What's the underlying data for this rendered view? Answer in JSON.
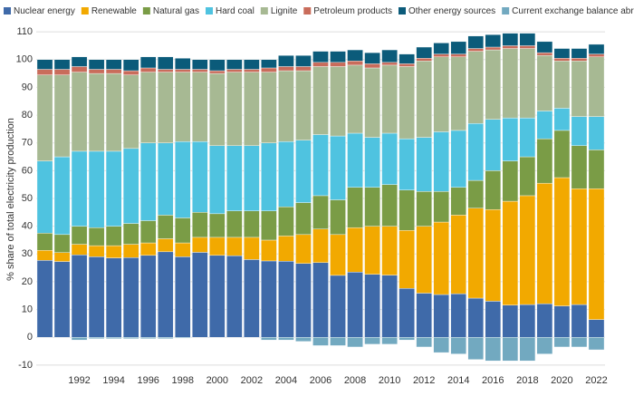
{
  "chart_data": {
    "type": "stacked_bar",
    "y_label": "% share of total electricity production",
    "categories": [
      null,
      null,
      "1992",
      null,
      "1994",
      null,
      "1996",
      null,
      "1998",
      null,
      "2000",
      null,
      "2002",
      null,
      "2004",
      null,
      "2006",
      null,
      "2008",
      null,
      "2010",
      null,
      "2012",
      null,
      "2014",
      null,
      "2016",
      null,
      "2018",
      null,
      "2020",
      null,
      "2022"
    ],
    "series": [
      {
        "name": "Nuclear energy",
        "color": "#3f6aa9",
        "values": [
          27.7,
          27.3,
          29.7,
          29.0,
          28.6,
          28.7,
          29.5,
          30.8,
          29.0,
          30.6,
          29.5,
          29.4,
          28.0,
          27.5,
          27.4,
          26.6,
          26.9,
          22.3,
          23.5,
          22.7,
          22.4,
          17.6,
          15.9,
          15.4,
          15.7,
          14.1,
          13.0,
          11.6,
          11.8,
          12.1,
          11.3,
          11.8,
          6.4
        ]
      },
      {
        "name": "Renewable",
        "color": "#f2a900",
        "values": [
          3.6,
          3.2,
          3.8,
          4.0,
          4.4,
          4.8,
          4.5,
          4.7,
          5.0,
          5.4,
          6.5,
          6.6,
          8.0,
          7.5,
          9.1,
          10.4,
          12.1,
          14.7,
          16.0,
          17.3,
          17.6,
          20.9,
          24.1,
          26.1,
          28.3,
          32.4,
          33.0,
          37.4,
          39.2,
          43.4,
          46.2,
          41.7,
          47.1
        ]
      },
      {
        "name": "Natural gas",
        "color": "#7a9c46",
        "values": [
          6.2,
          6.5,
          6.5,
          6.5,
          7.0,
          7.5,
          8.0,
          8.5,
          9.0,
          9.0,
          8.5,
          9.5,
          9.5,
          10.5,
          10.5,
          11.5,
          12.0,
          12.5,
          14.5,
          14.0,
          15.0,
          14.5,
          12.5,
          11.0,
          10.0,
          10.0,
          14.0,
          14.5,
          14.0,
          16.0,
          17.0,
          15.5,
          14.0
        ]
      },
      {
        "name": "Hard coal",
        "color": "#4fc3e0",
        "values": [
          26.0,
          28.0,
          27.0,
          27.5,
          27.0,
          27.0,
          28.0,
          26.0,
          27.5,
          25.5,
          24.5,
          23.5,
          23.5,
          24.5,
          23.5,
          22.5,
          22.0,
          23.0,
          19.5,
          18.0,
          18.5,
          18.5,
          19.5,
          21.5,
          20.5,
          20.5,
          18.5,
          15.5,
          14.0,
          10.0,
          8.0,
          10.5,
          12.0
        ]
      },
      {
        "name": "Lignite",
        "color": "#a7b993",
        "values": [
          31.0,
          29.5,
          28.5,
          28.0,
          28.0,
          26.5,
          25.5,
          25.5,
          25.0,
          25.0,
          26.0,
          26.5,
          26.5,
          25.5,
          25.5,
          25.0,
          24.5,
          25.0,
          24.5,
          25.0,
          24.5,
          26.0,
          27.5,
          27.0,
          26.5,
          26.0,
          25.0,
          25.0,
          25.0,
          20.0,
          17.0,
          20.0,
          21.5
        ]
      },
      {
        "name": "Petroleum products",
        "color": "#c96c5b",
        "values": [
          2.0,
          2.0,
          2.0,
          1.5,
          1.5,
          1.5,
          1.5,
          1.0,
          1.0,
          1.0,
          1.0,
          1.0,
          1.0,
          1.5,
          1.5,
          1.5,
          1.5,
          1.5,
          1.5,
          1.5,
          1.0,
          1.0,
          1.0,
          1.0,
          1.0,
          1.0,
          1.0,
          1.0,
          1.0,
          1.0,
          1.0,
          1.0,
          1.0
        ]
      },
      {
        "name": "Other energy sources",
        "color": "#0b5b7a",
        "values": [
          3.5,
          3.5,
          3.5,
          3.5,
          3.5,
          4.0,
          4.0,
          4.5,
          4.0,
          3.5,
          4.0,
          3.5,
          3.5,
          3.0,
          4.0,
          4.0,
          4.0,
          4.0,
          4.0,
          4.0,
          4.5,
          3.5,
          4.0,
          4.0,
          4.5,
          4.5,
          4.5,
          4.5,
          4.5,
          4.0,
          3.5,
          3.5,
          3.5
        ]
      },
      {
        "name": "Current exchange balance abroad",
        "color": "#72a9c0",
        "values": [
          0,
          0,
          -1.0,
          -0.5,
          -0.5,
          -0.5,
          -0.5,
          -0.5,
          -0.3,
          0,
          0,
          0,
          0,
          -1.0,
          -1.0,
          -1.5,
          -3.0,
          -3.0,
          -3.5,
          -2.5,
          -2.5,
          -1.0,
          -3.5,
          -5.5,
          -6.0,
          -8.0,
          -8.5,
          -8.5,
          -8.5,
          -6.0,
          -3.5,
          -3.5,
          -4.5
        ]
      }
    ],
    "ylim": [
      -12,
      112
    ],
    "yticks": [
      -10,
      0,
      10,
      20,
      30,
      40,
      50,
      60,
      70,
      80,
      90,
      100,
      110
    ],
    "grid": true,
    "legend": "top-left"
  }
}
